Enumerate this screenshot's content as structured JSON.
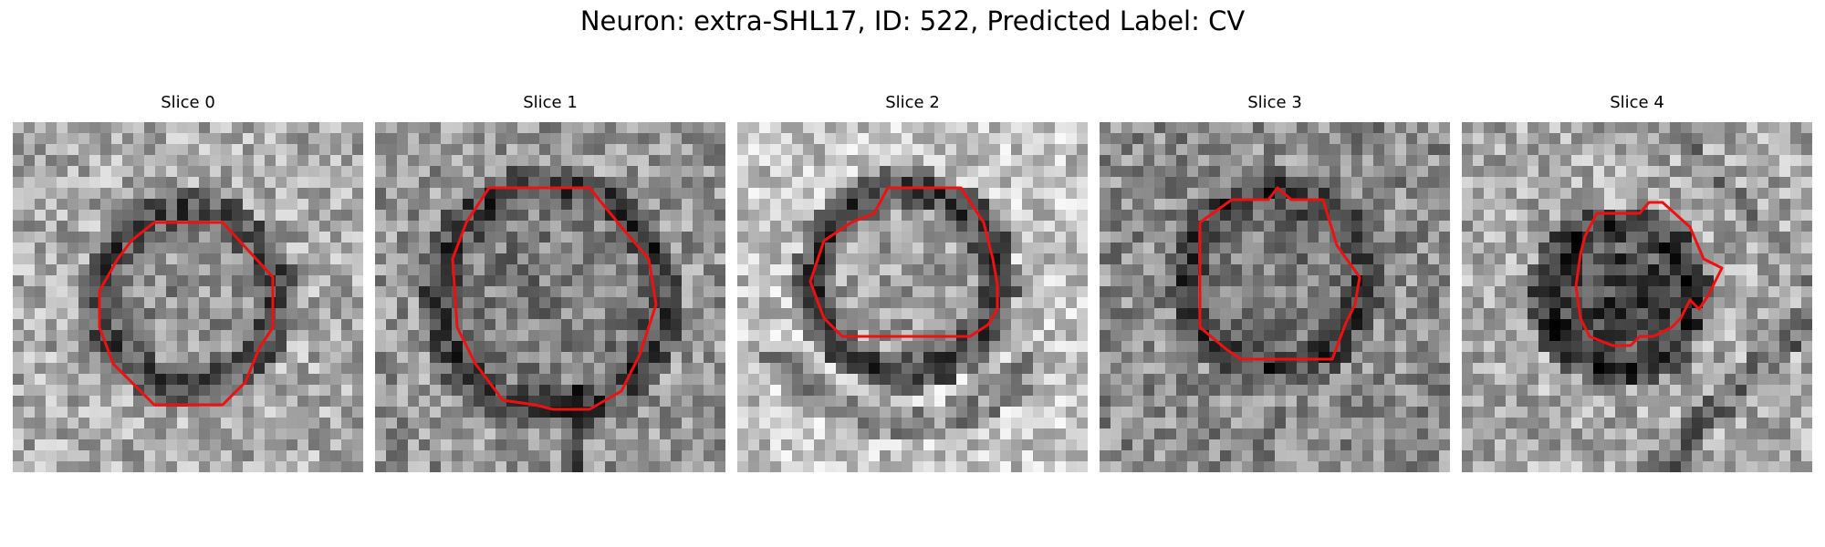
{
  "figure": {
    "title": "Neuron: extra-SHL17, ID: 522, Predicted Label: CV"
  },
  "colors": {
    "contour": "#ee1111",
    "background": "#ffffff"
  },
  "slices": [
    {
      "title": "Slice 0"
    },
    {
      "title": "Slice 1"
    },
    {
      "title": "Slice 2"
    },
    {
      "title": "Slice 3"
    },
    {
      "title": "Slice 4"
    }
  ]
}
